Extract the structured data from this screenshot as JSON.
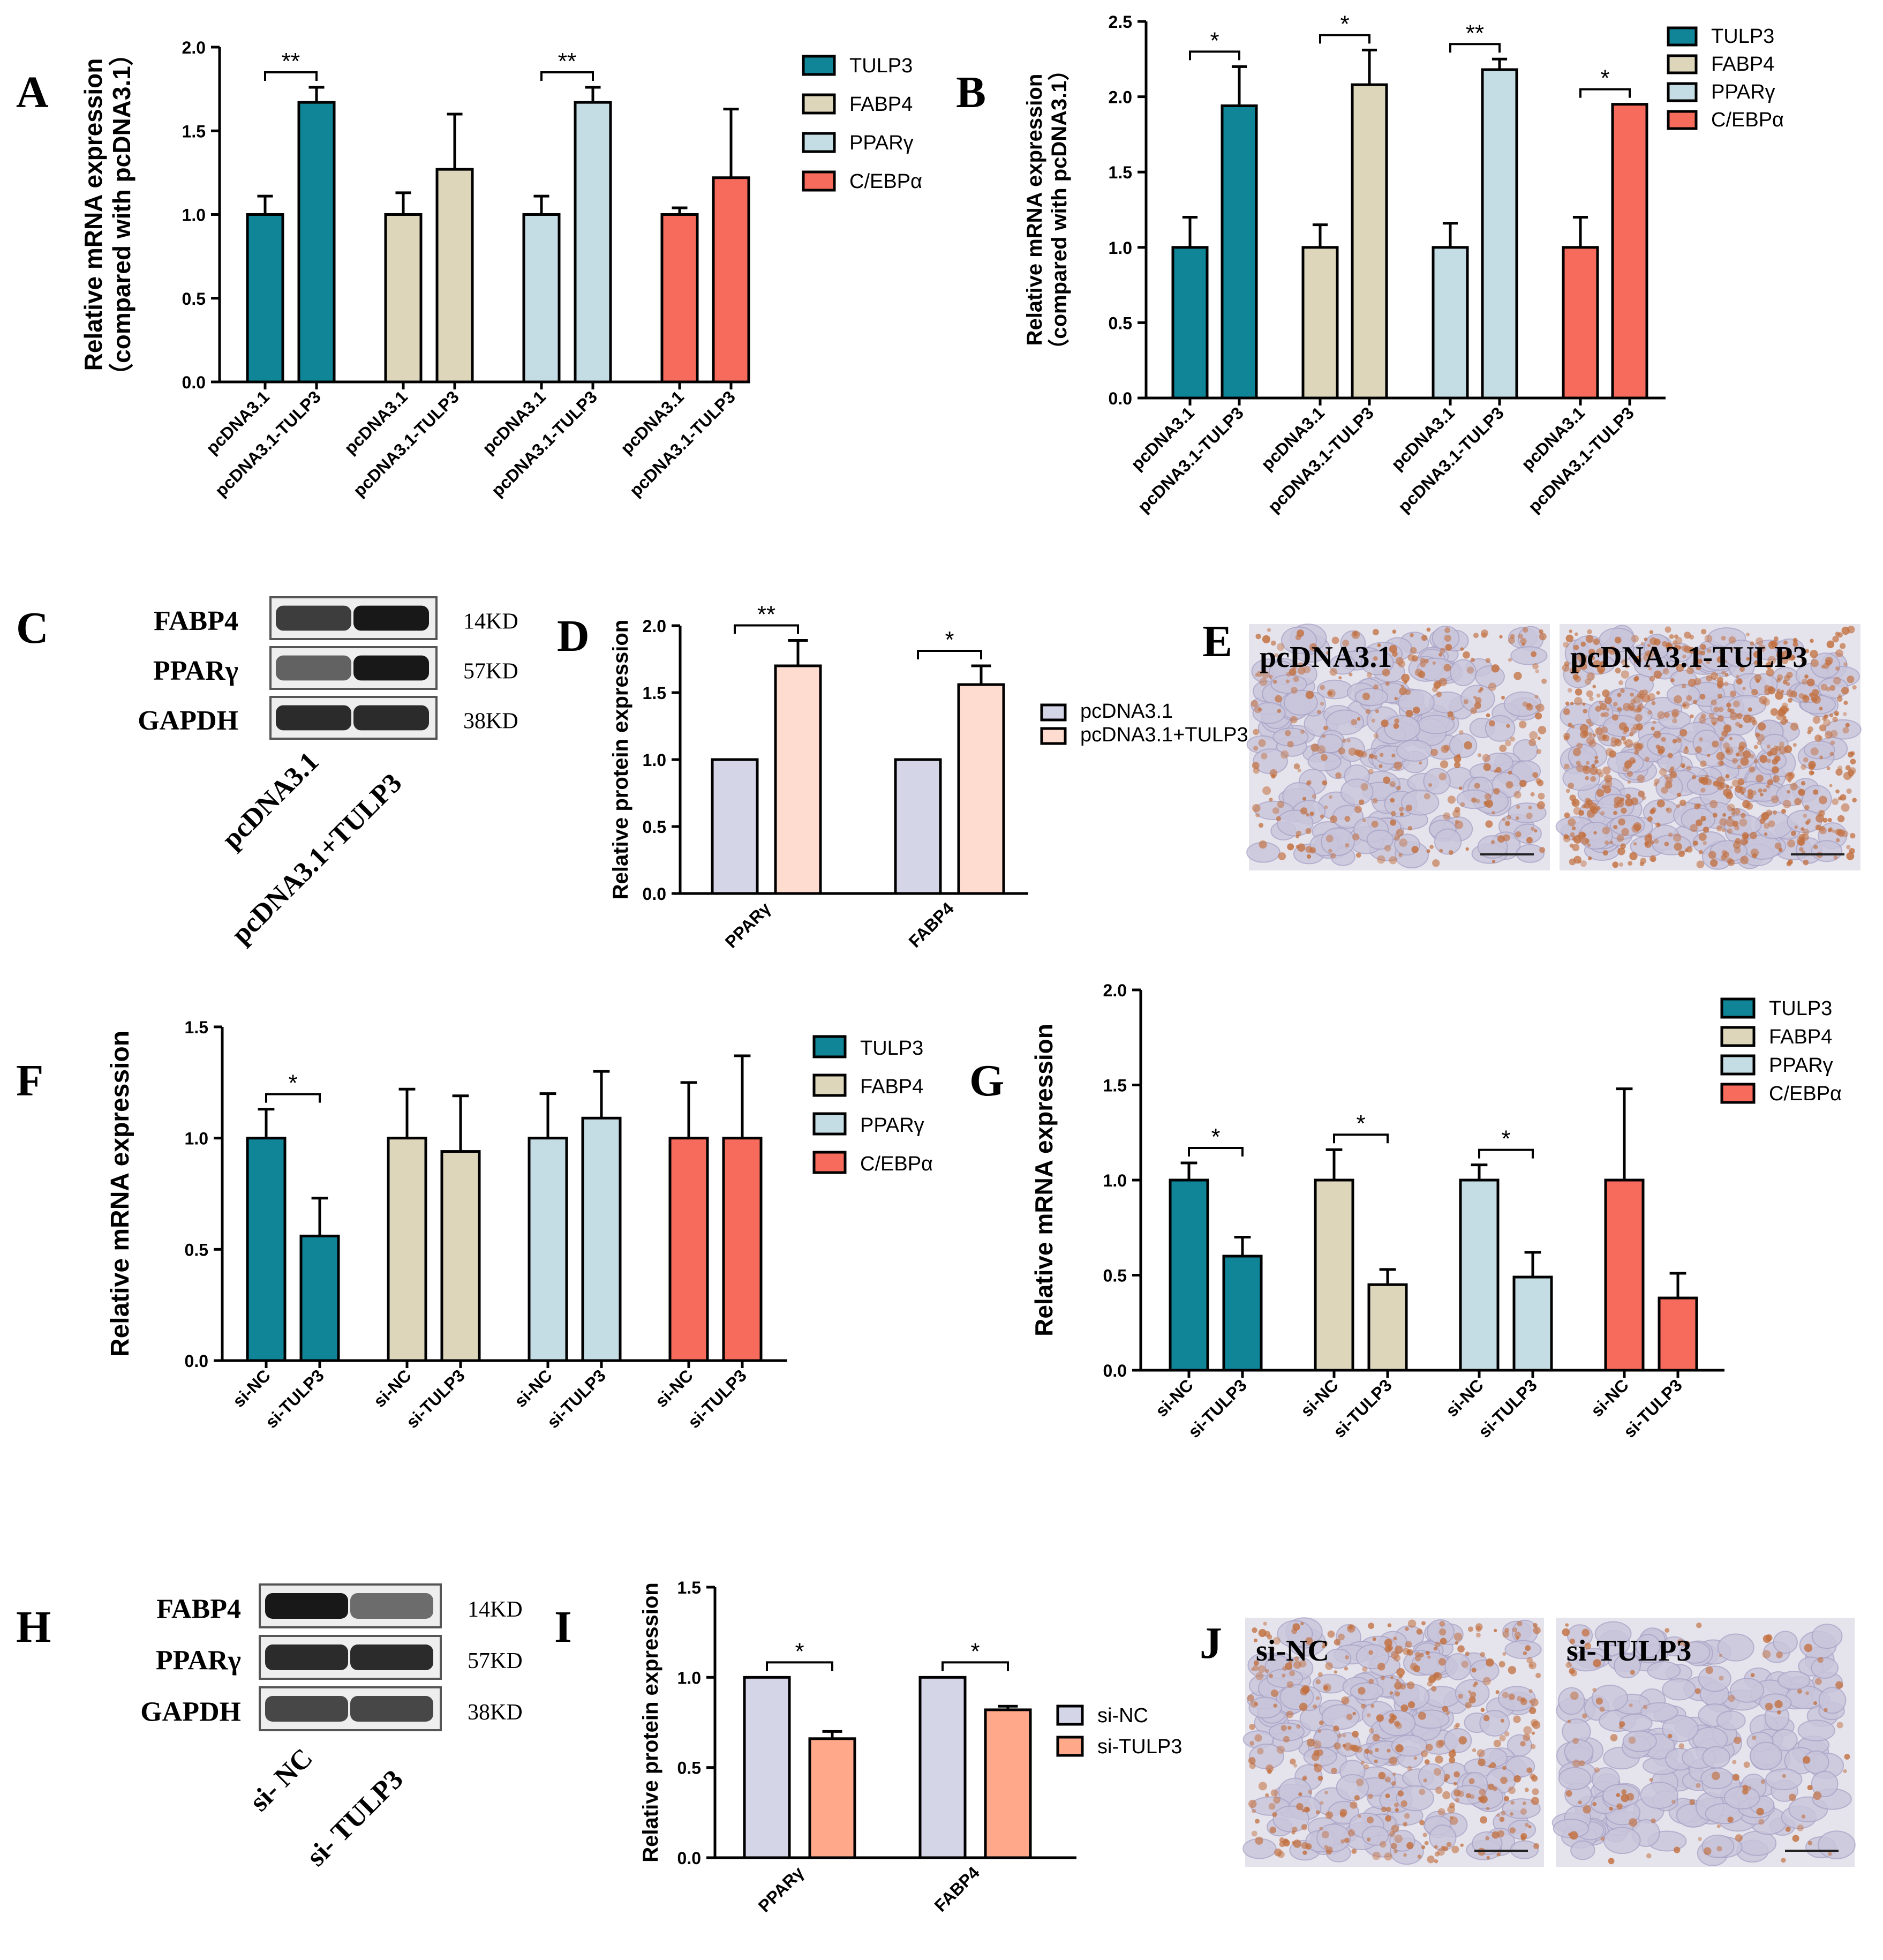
{
  "colors": {
    "TULP3": "#0f8597",
    "FABP4": "#ddd6bb",
    "PPARy": "#c4dce4",
    "CEBPa": "#f66b5b",
    "pcDNA3.1": "#d5d5e8",
    "pcDNA3.1+TULP3": "#ffdcd0",
    "si-NC": "#d5d5e8",
    "si-TULP3": "#ffa88a"
  },
  "panel_letters": [
    "A",
    "B",
    "C",
    "D",
    "E",
    "F",
    "G",
    "H",
    "I",
    "J"
  ],
  "chart_data": [
    {
      "id": "A",
      "type": "bar",
      "ylabel": "Relative mRNA expression\n（compared with pcDNA3.1）",
      "ylim": [
        0,
        2.0
      ],
      "yticks": [
        "0.0",
        "0.5",
        "1.0",
        "1.5",
        "2.0"
      ],
      "categories": [
        "pcDNA3.1",
        "pcDNA3.1-TULP3"
      ],
      "legend": [
        "TULP3",
        "FABP4",
        "PPARγ",
        "C/EBPα"
      ],
      "legend_placement": "right",
      "series": [
        {
          "name": "TULP3",
          "values": [
            1.0,
            1.67
          ],
          "errors": [
            0.11,
            0.09
          ],
          "sig": "**"
        },
        {
          "name": "FABP4",
          "values": [
            1.0,
            1.27
          ],
          "errors": [
            0.13,
            0.33
          ],
          "sig": ""
        },
        {
          "name": "PPARγ",
          "values": [
            1.0,
            1.67
          ],
          "errors": [
            0.11,
            0.09
          ],
          "sig": "**"
        },
        {
          "name": "C/EBPα",
          "values": [
            1.0,
            1.22
          ],
          "errors": [
            0.04,
            0.41
          ],
          "sig": ""
        }
      ]
    },
    {
      "id": "B",
      "type": "bar",
      "ylabel": "Relative mRNA expression\n（compared with pcDNA3.1）",
      "ylim": [
        0,
        2.5
      ],
      "yticks": [
        "0.0",
        "0.5",
        "1.0",
        "1.5",
        "2.0",
        "2.5"
      ],
      "categories": [
        "pcDNA3.1",
        "pcDNA3.1-TULP3"
      ],
      "legend": [
        "TULP3",
        "FABP4",
        "PPARγ",
        "C/EBPα"
      ],
      "legend_placement": "top-right",
      "series": [
        {
          "name": "TULP3",
          "values": [
            1.0,
            1.94
          ],
          "errors": [
            0.2,
            0.26
          ],
          "sig": "*"
        },
        {
          "name": "FABP4",
          "values": [
            1.0,
            2.08
          ],
          "errors": [
            0.15,
            0.23
          ],
          "sig": "*"
        },
        {
          "name": "PPARγ",
          "values": [
            1.0,
            2.18
          ],
          "errors": [
            0.16,
            0.07
          ],
          "sig": "**"
        },
        {
          "name": "C/EBPα",
          "values": [
            1.0,
            1.95
          ],
          "errors": [
            0.2,
            0.0
          ],
          "sig": "*"
        }
      ]
    },
    {
      "id": "D",
      "type": "bar",
      "ylabel": "Relative  protein expression",
      "ylim": [
        0,
        2.0
      ],
      "yticks": [
        "0.0",
        "0.5",
        "1.0",
        "1.5",
        "2.0"
      ],
      "categories": [
        "PPARγ",
        "FABP4"
      ],
      "legend_placement": "right",
      "series": [
        {
          "name": "pcDNA3.1",
          "values": [
            1.0,
            1.0
          ],
          "errors": [
            0,
            0
          ]
        },
        {
          "name": "pcDNA3.1+TULP3",
          "values": [
            1.7,
            1.56
          ],
          "errors": [
            0.19,
            0.14
          ]
        }
      ],
      "sig": [
        "**",
        "*"
      ]
    },
    {
      "id": "F",
      "type": "bar",
      "ylabel": "Relative mRNA expression",
      "ylim": [
        0,
        1.5
      ],
      "yticks": [
        "0.0",
        "0.5",
        "1.0",
        "1.5"
      ],
      "categories": [
        "si-NC",
        "si-TULP3"
      ],
      "legend": [
        "TULP3",
        "FABP4",
        "PPARγ",
        "C/EBPα"
      ],
      "legend_placement": "right",
      "series": [
        {
          "name": "TULP3",
          "values": [
            1.0,
            0.56
          ],
          "errors": [
            0.13,
            0.17
          ],
          "sig": "*"
        },
        {
          "name": "FABP4",
          "values": [
            1.0,
            0.94
          ],
          "errors": [
            0.22,
            0.25
          ],
          "sig": ""
        },
        {
          "name": "PPARγ",
          "values": [
            1.0,
            1.09
          ],
          "errors": [
            0.2,
            0.21
          ],
          "sig": ""
        },
        {
          "name": "C/EBPα",
          "values": [
            1.0,
            1.0
          ],
          "errors": [
            0.25,
            0.37
          ],
          "sig": ""
        }
      ]
    },
    {
      "id": "G",
      "type": "bar",
      "ylabel": "Relative mRNA expression",
      "ylim": [
        0,
        2.0
      ],
      "yticks": [
        "0.0",
        "0.5",
        "1.0",
        "1.5",
        "2.0"
      ],
      "categories": [
        "si-NC",
        "si-TULP3"
      ],
      "legend": [
        "TULP3",
        "FABP4",
        "PPARγ",
        "C/EBPα"
      ],
      "legend_placement": "top-right",
      "series": [
        {
          "name": "TULP3",
          "values": [
            1.0,
            0.6
          ],
          "errors": [
            0.09,
            0.1
          ],
          "sig": "*"
        },
        {
          "name": "FABP4",
          "values": [
            1.0,
            0.45
          ],
          "errors": [
            0.16,
            0.08
          ],
          "sig": "*"
        },
        {
          "name": "PPARγ",
          "values": [
            1.0,
            0.49
          ],
          "errors": [
            0.08,
            0.13
          ],
          "sig": "*"
        },
        {
          "name": "C/EBPα",
          "values": [
            1.0,
            0.38
          ],
          "errors": [
            0.48,
            0.13
          ],
          "sig": ""
        }
      ]
    },
    {
      "id": "I",
      "type": "bar",
      "ylabel": "Relative  protein expression",
      "ylim": [
        0,
        1.5
      ],
      "yticks": [
        "0.0",
        "0.5",
        "1.0",
        "1.5"
      ],
      "categories": [
        "PPARγ",
        "FABP4"
      ],
      "legend_placement": "right",
      "series": [
        {
          "name": "si-NC",
          "values": [
            1.0,
            1.0
          ],
          "errors": [
            0,
            0
          ]
        },
        {
          "name": "si-TULP3",
          "values": [
            0.66,
            0.82
          ],
          "errors": [
            0.04,
            0.02
          ]
        }
      ],
      "sig": [
        "*",
        "*"
      ]
    }
  ],
  "blots": [
    {
      "id": "C",
      "rows": [
        {
          "protein": "FABP4",
          "size": "14KD",
          "bands": [
            0.75,
            0.95
          ]
        },
        {
          "protein": "PPARγ",
          "size": "57KD",
          "bands": [
            0.55,
            0.95
          ]
        },
        {
          "protein": "GAPDH",
          "size": "38KD",
          "bands": [
            0.85,
            0.85
          ]
        }
      ],
      "lanes": [
        "pcDNA3.1",
        "pcDNA3.1+TULP3"
      ]
    },
    {
      "id": "H",
      "rows": [
        {
          "protein": "FABP4",
          "size": "14KD",
          "bands": [
            0.95,
            0.5
          ]
        },
        {
          "protein": "PPARγ",
          "size": "57KD",
          "bands": [
            0.85,
            0.85
          ]
        },
        {
          "protein": "GAPDH",
          "size": "38KD",
          "bands": [
            0.7,
            0.7
          ]
        }
      ],
      "lanes": [
        "si- NC",
        "si- TULP3"
      ]
    }
  ],
  "micrographs": [
    {
      "id": "E",
      "labels": [
        "pcDNA3.1",
        "pcDNA3.1-TULP3"
      ],
      "stain_level": [
        0.35,
        0.8
      ]
    },
    {
      "id": "J",
      "labels": [
        "si-NC",
        "si-TULP3"
      ],
      "stain_level": [
        0.45,
        0.12
      ]
    }
  ]
}
